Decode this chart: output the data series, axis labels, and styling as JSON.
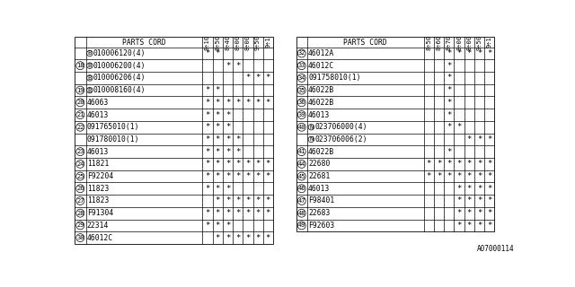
{
  "title": "PARTS CORD",
  "left_col_headers": [
    "8÷10",
    "8÷50",
    "8÷40",
    "8÷00",
    "8÷00",
    "9÷50",
    "9÷1"
  ],
  "right_col_headers": [
    "8÷50",
    "8÷60",
    "8÷70",
    "8÷00",
    "8÷00",
    "9÷50",
    "9÷1"
  ],
  "left_rows": [
    {
      "num": null,
      "circle": "B",
      "part": "010006120(4)",
      "stars": [
        1,
        1,
        0,
        0,
        0,
        0,
        0
      ]
    },
    {
      "num": "18",
      "circle": "B",
      "part": "010006200(4)",
      "stars": [
        0,
        0,
        1,
        1,
        0,
        0,
        0
      ]
    },
    {
      "num": null,
      "circle": "B",
      "part": "010006206(4)",
      "stars": [
        0,
        0,
        0,
        0,
        1,
        1,
        1
      ]
    },
    {
      "num": "19",
      "circle": "B",
      "part": "010008160(4)",
      "stars": [
        1,
        1,
        0,
        0,
        0,
        0,
        0
      ]
    },
    {
      "num": "20",
      "circle": null,
      "part": "46063",
      "stars": [
        1,
        1,
        1,
        1,
        1,
        1,
        1
      ]
    },
    {
      "num": "21",
      "circle": null,
      "part": "46013",
      "stars": [
        1,
        1,
        1,
        0,
        0,
        0,
        0
      ]
    },
    {
      "num": "22",
      "circle": null,
      "part": "091765010(1)",
      "stars": [
        1,
        1,
        1,
        0,
        0,
        0,
        0
      ]
    },
    {
      "num": null,
      "circle": null,
      "part": "091780010(1)",
      "stars": [
        1,
        1,
        1,
        1,
        0,
        0,
        0
      ]
    },
    {
      "num": "23",
      "circle": null,
      "part": "46013",
      "stars": [
        1,
        1,
        1,
        1,
        0,
        0,
        0
      ]
    },
    {
      "num": "24",
      "circle": null,
      "part": "11821",
      "stars": [
        1,
        1,
        1,
        1,
        1,
        1,
        1
      ]
    },
    {
      "num": "25",
      "circle": null,
      "part": "F92204",
      "stars": [
        1,
        1,
        1,
        1,
        1,
        1,
        1
      ]
    },
    {
      "num": "26",
      "circle": null,
      "part": "11823",
      "stars": [
        1,
        1,
        1,
        0,
        0,
        0,
        0
      ]
    },
    {
      "num": "27",
      "circle": null,
      "part": "11823",
      "stars": [
        0,
        1,
        1,
        1,
        1,
        1,
        1
      ]
    },
    {
      "num": "28",
      "circle": null,
      "part": "F91304",
      "stars": [
        1,
        1,
        1,
        1,
        1,
        1,
        1
      ]
    },
    {
      "num": "29",
      "circle": null,
      "part": "22314",
      "stars": [
        1,
        1,
        1,
        0,
        0,
        0,
        0
      ]
    },
    {
      "num": "30",
      "circle": null,
      "part": "46012C",
      "stars": [
        0,
        1,
        1,
        1,
        1,
        1,
        1
      ]
    }
  ],
  "right_rows": [
    {
      "num": "32",
      "circle": null,
      "part": "46012A",
      "stars": [
        0,
        0,
        1,
        1,
        1,
        1,
        1
      ]
    },
    {
      "num": "33",
      "circle": null,
      "part": "46012C",
      "stars": [
        0,
        0,
        1,
        0,
        0,
        0,
        0
      ]
    },
    {
      "num": "34",
      "circle": null,
      "part": "091758010(1)",
      "stars": [
        0,
        0,
        1,
        0,
        0,
        0,
        0
      ]
    },
    {
      "num": "35",
      "circle": null,
      "part": "46022B",
      "stars": [
        0,
        0,
        1,
        0,
        0,
        0,
        0
      ]
    },
    {
      "num": "36",
      "circle": null,
      "part": "46022B",
      "stars": [
        0,
        0,
        1,
        0,
        0,
        0,
        0
      ]
    },
    {
      "num": "39",
      "circle": null,
      "part": "46013",
      "stars": [
        0,
        0,
        1,
        0,
        0,
        0,
        0
      ]
    },
    {
      "num": "40",
      "circle": "N",
      "part": "023706000(4)",
      "stars": [
        0,
        0,
        1,
        1,
        0,
        0,
        0
      ]
    },
    {
      "num": null,
      "circle": "N",
      "part": "023706006(2)",
      "stars": [
        0,
        0,
        0,
        0,
        1,
        1,
        1
      ]
    },
    {
      "num": "41",
      "circle": null,
      "part": "46022B",
      "stars": [
        0,
        0,
        1,
        0,
        0,
        0,
        0
      ]
    },
    {
      "num": "44",
      "circle": null,
      "part": "22680",
      "stars": [
        1,
        1,
        1,
        1,
        1,
        1,
        1
      ]
    },
    {
      "num": "45",
      "circle": null,
      "part": "22681",
      "stars": [
        1,
        1,
        1,
        1,
        1,
        1,
        1
      ]
    },
    {
      "num": "46",
      "circle": null,
      "part": "46013",
      "stars": [
        0,
        0,
        0,
        1,
        1,
        1,
        1
      ]
    },
    {
      "num": "47",
      "circle": null,
      "part": "F98401",
      "stars": [
        0,
        0,
        0,
        1,
        1,
        1,
        1
      ]
    },
    {
      "num": "48",
      "circle": null,
      "part": "22683",
      "stars": [
        0,
        0,
        0,
        1,
        1,
        1,
        1
      ]
    },
    {
      "num": "49",
      "circle": null,
      "part": "F92603",
      "stars": [
        0,
        0,
        0,
        1,
        1,
        1,
        1
      ]
    }
  ],
  "footer": "A07000114",
  "bg_color": "#ffffff",
  "line_color": "#000000",
  "text_color": "#000000"
}
